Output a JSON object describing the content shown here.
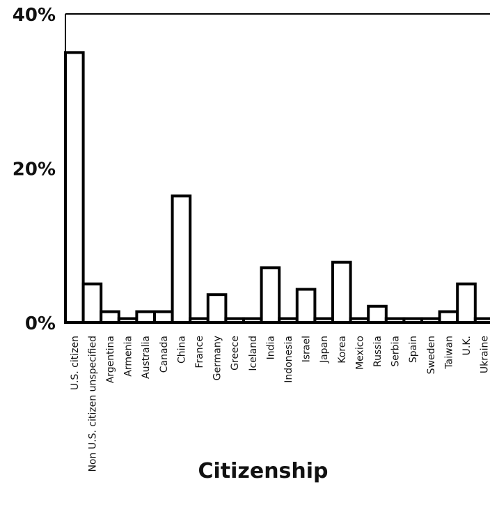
{
  "chart_data": {
    "type": "bar",
    "categories": [
      "U.S. citizen",
      "Non U.S. citizen unspecified",
      "Argentina",
      "Armenia",
      "Australia",
      "Canada",
      "China",
      "France",
      "Germany",
      "Greece",
      "Iceland",
      "India",
      "Indonesia",
      "Israel",
      "Japan",
      "Korea",
      "Mexico",
      "Russia",
      "Serbia",
      "Spain",
      "Sweden",
      "Taiwan",
      "U.K.",
      "Ukraine"
    ],
    "values": [
      35,
      5,
      1.4,
      0.5,
      1.4,
      1.4,
      16.4,
      0.5,
      3.6,
      0.5,
      0.5,
      7.1,
      0.5,
      4.3,
      0.5,
      7.8,
      0.5,
      2.1,
      0.5,
      0.5,
      0.5,
      1.4,
      5,
      0.5
    ],
    "xlabel": "Citizenship",
    "ylabel": "",
    "ylim": [
      0,
      40
    ],
    "y_tick_labels": [
      "0%",
      "20%",
      "40%"
    ],
    "y_tick_values": [
      0,
      20,
      40
    ],
    "y_minor_step": 5,
    "grid": false,
    "bar_fill": "#ffffff",
    "bar_stroke": "#000000"
  }
}
